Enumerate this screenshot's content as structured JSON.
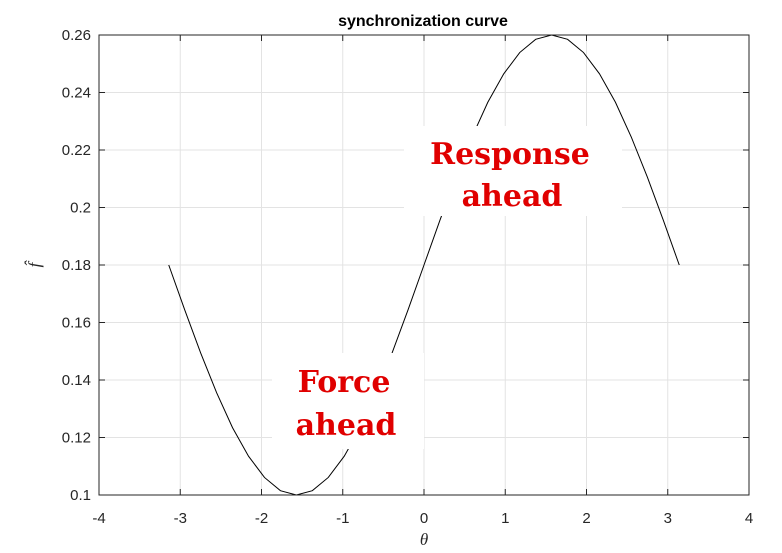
{
  "chart_data": {
    "type": "line",
    "title": "synchronization curve",
    "xlabel": "θ",
    "ylabel": "f̂",
    "xlim": [
      -4,
      4
    ],
    "ylim": [
      0.1,
      0.26
    ],
    "grid": true,
    "x_ticks": [
      -4,
      -3,
      -2,
      -1,
      0,
      1,
      2,
      3,
      4
    ],
    "y_ticks": [
      0.1,
      0.12,
      0.14,
      0.16,
      0.18,
      0.2,
      0.22,
      0.24,
      0.26
    ],
    "x_tick_labels": [
      "-4",
      "-3",
      "-2",
      "-1",
      "0",
      "1",
      "2",
      "3",
      "4"
    ],
    "y_tick_labels": [
      "0.1",
      "0.12",
      "0.14",
      "0.16",
      "0.18",
      "0.2",
      "0.22",
      "0.24",
      "0.26"
    ],
    "series": [
      {
        "color": "#000000",
        "x": [
          -3.1416,
          -2.9452,
          -2.7489,
          -2.5525,
          -2.3562,
          -2.1598,
          -1.9635,
          -1.7671,
          -1.5708,
          -1.3744,
          -1.1781,
          -0.9817,
          -0.7854,
          -0.589,
          -0.3927,
          -0.1963,
          0,
          0.1963,
          0.3927,
          0.589,
          0.7854,
          0.9817,
          1.1781,
          1.3744,
          1.5708,
          1.7671,
          1.9635,
          2.1598,
          2.3562,
          2.5525,
          2.7489,
          2.9452,
          3.1416
        ],
        "y": [
          0.18,
          0.1644,
          0.1494,
          0.1356,
          0.1234,
          0.1135,
          0.1061,
          0.1015,
          0.1,
          0.1015,
          0.1061,
          0.1135,
          0.1234,
          0.1356,
          0.1494,
          0.1644,
          0.18,
          0.1956,
          0.2106,
          0.2244,
          0.2366,
          0.2465,
          0.2539,
          0.2585,
          0.26,
          0.2585,
          0.2539,
          0.2465,
          0.2366,
          0.2244,
          0.2106,
          0.1956,
          0.18
        ]
      }
    ],
    "annotations": [
      {
        "line1": "Response",
        "line2": "ahead",
        "color": "#e00000"
      },
      {
        "line1": "Force",
        "line2": "ahead",
        "color": "#e00000"
      }
    ]
  }
}
